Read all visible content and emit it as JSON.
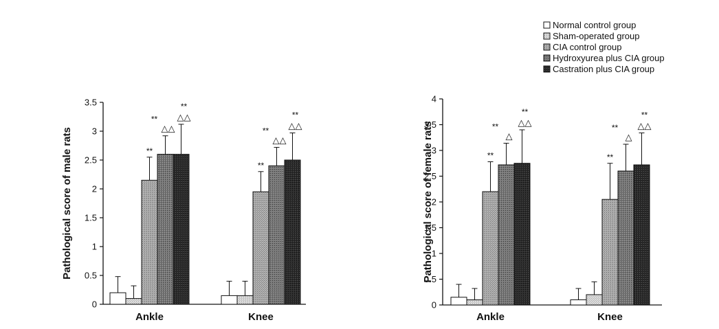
{
  "legend": {
    "items": [
      {
        "label": "Normal control group",
        "color": "#ffffff"
      },
      {
        "label": "Sham-operated group",
        "color": "#d6d6d6"
      },
      {
        "label": "CIA control group",
        "color": "#a8a8a8"
      },
      {
        "label": "Hydroxyurea plus CIA group",
        "color": "#6c6c6c"
      },
      {
        "label": "Castration plus CIA group",
        "color": "#262626"
      }
    ]
  },
  "chart_data": [
    {
      "type": "bar",
      "title": "",
      "ylabel": "Pathological score of male rats",
      "xlabel": "",
      "categories": [
        "Ankle",
        "Knee"
      ],
      "ylim": [
        0,
        3.5
      ],
      "yticks": [
        "0",
        "0.5",
        "1",
        "1.5",
        "2",
        "2.5",
        "3",
        "3.5"
      ],
      "series": [
        {
          "name": "Normal control group",
          "values": [
            0.2,
            0.15
          ],
          "errors": [
            0.28,
            0.25
          ],
          "annotations": [
            "",
            ""
          ]
        },
        {
          "name": "Sham-operated group",
          "values": [
            0.1,
            0.15
          ],
          "errors": [
            0.22,
            0.25
          ],
          "annotations": [
            "",
            ""
          ]
        },
        {
          "name": "CIA control group",
          "values": [
            2.15,
            1.95
          ],
          "errors": [
            0.4,
            0.35
          ],
          "annotations": [
            "**",
            "**"
          ]
        },
        {
          "name": "Hydroxyurea plus CIA group",
          "values": [
            2.6,
            2.4
          ],
          "errors": [
            0.32,
            0.32
          ],
          "annotations": [
            "**△△",
            "**△△"
          ]
        },
        {
          "name": "Castration plus CIA group",
          "values": [
            2.6,
            2.5
          ],
          "errors": [
            0.52,
            0.47
          ],
          "annotations": [
            "**△△",
            "**△△"
          ]
        }
      ]
    },
    {
      "type": "bar",
      "title": "",
      "ylabel": "Pathological score of female rats",
      "xlabel": "",
      "categories": [
        "Ankle",
        "Knee"
      ],
      "ylim": [
        0,
        4
      ],
      "yticks": [
        "0",
        "0.5",
        "1",
        "1.5",
        "2",
        "2.5",
        "3",
        "3.5",
        "4"
      ],
      "series": [
        {
          "name": "Normal control group",
          "values": [
            0.15,
            0.1
          ],
          "errors": [
            0.25,
            0.22
          ],
          "annotations": [
            "",
            ""
          ]
        },
        {
          "name": "Sham-operated group",
          "values": [
            0.1,
            0.2
          ],
          "errors": [
            0.22,
            0.25
          ],
          "annotations": [
            "",
            ""
          ]
        },
        {
          "name": "CIA control group",
          "values": [
            2.2,
            2.05
          ],
          "errors": [
            0.58,
            0.7
          ],
          "annotations": [
            "**",
            "**"
          ]
        },
        {
          "name": "Hydroxyurea plus CIA group",
          "values": [
            2.72,
            2.6
          ],
          "errors": [
            0.42,
            0.52
          ],
          "annotations": [
            "**△",
            "**△"
          ]
        },
        {
          "name": "Castration plus CIA group",
          "values": [
            2.75,
            2.72
          ],
          "errors": [
            0.65,
            0.62
          ],
          "annotations": [
            "**△△",
            "**△△"
          ]
        }
      ]
    }
  ]
}
